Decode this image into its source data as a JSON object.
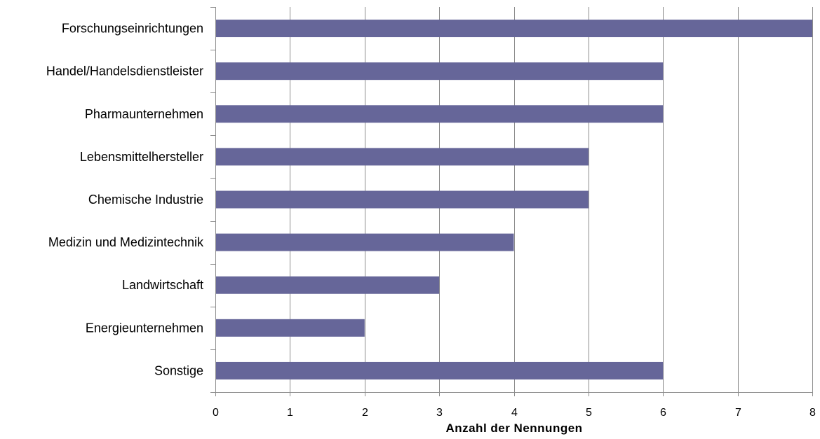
{
  "chart_data": {
    "type": "bar",
    "orientation": "horizontal",
    "categories": [
      "Forschungseinrichtungen",
      "Handel/Handelsdienstleister",
      "Pharmaunternehmen",
      "Lebensmittelhersteller",
      "Chemische Industrie",
      "Medizin und Medizintechnik",
      "Landwirtschaft",
      "Energieunternehmen",
      "Sonstige"
    ],
    "values": [
      8,
      6,
      6,
      5,
      5,
      4,
      3,
      2,
      6
    ],
    "xlabel": "Anzahl der Nennungen",
    "ylabel": "",
    "xlim": [
      0,
      8
    ],
    "xticks": [
      "0",
      "1",
      "2",
      "3",
      "4",
      "5",
      "6",
      "7",
      "8"
    ],
    "grid": "vertical",
    "bar_color": "#666699"
  }
}
